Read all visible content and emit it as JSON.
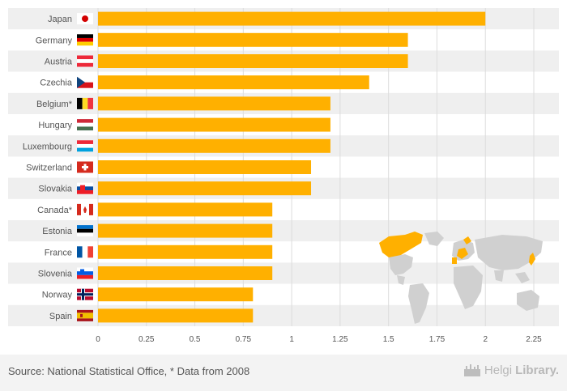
{
  "colors": {
    "bar": "#ffb000",
    "row_band": "#efefef",
    "grid": "#dcdcdc",
    "label": "#555555",
    "map_land": "#d0d0d0",
    "map_highlight": "#ffb000",
    "footer_bg": "#f3f3f3"
  },
  "chart_data": {
    "type": "bar",
    "orientation": "horizontal",
    "categories": [
      "Japan",
      "Germany",
      "Austria",
      "Czechia",
      "Belgium*",
      "Hungary",
      "Luxembourg",
      "Switzerland",
      "Slovakia",
      "Canada*",
      "Estonia",
      "France",
      "Slovenia",
      "Norway",
      "Spain"
    ],
    "values": [
      2.0,
      1.6,
      1.6,
      1.4,
      1.2,
      1.2,
      1.2,
      1.1,
      1.1,
      0.9,
      0.9,
      0.9,
      0.9,
      0.8,
      0.8
    ],
    "flags": [
      "flag-japan-icon",
      "flag-germany-icon",
      "flag-austria-icon",
      "flag-czechia-icon",
      "flag-belgium-icon",
      "flag-hungary-icon",
      "flag-luxembourg-icon",
      "flag-switzerland-icon",
      "flag-slovakia-icon",
      "flag-canada-icon",
      "flag-estonia-icon",
      "flag-france-icon",
      "flag-slovenia-icon",
      "flag-norway-icon",
      "flag-spain-icon"
    ],
    "xlim": [
      0,
      2.25
    ],
    "xticks": [
      0,
      0.25,
      0.5,
      0.75,
      1,
      1.25,
      1.5,
      1.75,
      2,
      2.25
    ],
    "xtick_labels": [
      "0",
      "0.25",
      "0.5",
      "0.75",
      "1",
      "1.25",
      "1.5",
      "1.75",
      "2",
      "2.25"
    ],
    "title": "",
    "xlabel": "",
    "ylabel": "",
    "grid": true,
    "legend": "none",
    "inset": "world-map-highlighting-listed-countries"
  },
  "footer": {
    "source": "Source: National Statistical Office, * Data from 2008",
    "brand_prefix": "Helgi",
    "brand_suffix": "Library."
  }
}
